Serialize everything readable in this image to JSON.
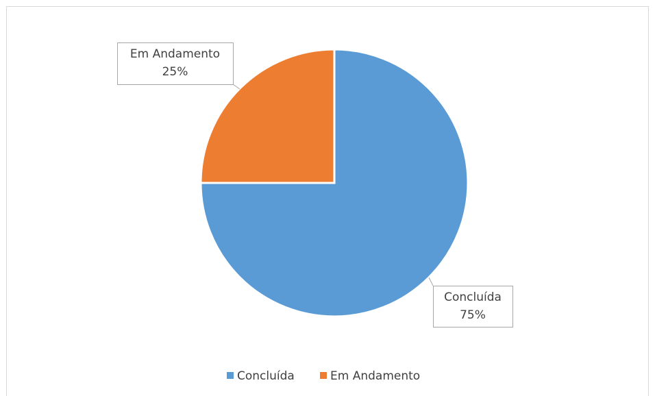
{
  "chart_data": {
    "type": "pie",
    "categories": [
      "Concluída",
      "Em Andamento"
    ],
    "values": [
      75,
      25
    ],
    "value_labels": [
      "75%",
      "25%"
    ],
    "colors": [
      "#5b9bd5",
      "#ed7d31"
    ],
    "legend": "bottom"
  }
}
